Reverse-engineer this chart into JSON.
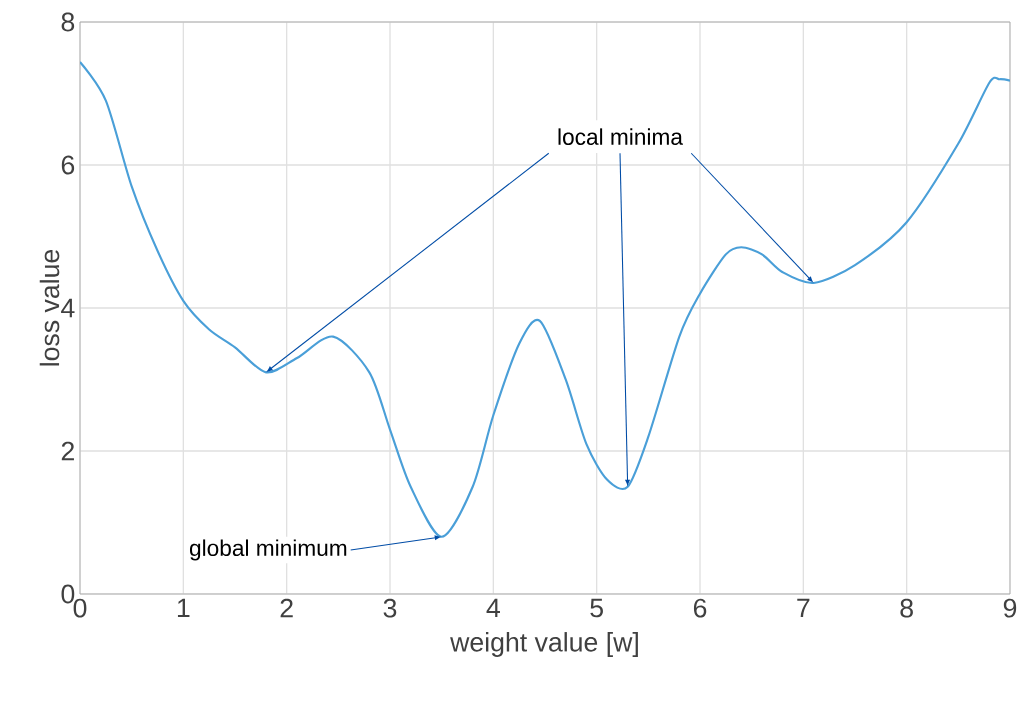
{
  "chart_data": {
    "type": "line",
    "xlabel": "weight value [w]",
    "ylabel": "loss value",
    "x": [
      0,
      0.25,
      0.5,
      0.75,
      1.0,
      1.25,
      1.5,
      1.8,
      2.1,
      2.45,
      2.8,
      3.0,
      3.2,
      3.5,
      3.8,
      4.0,
      4.25,
      4.45,
      4.7,
      4.9,
      5.1,
      5.3,
      5.5,
      5.8,
      6.0,
      6.25,
      6.4,
      6.6,
      6.8,
      7.1,
      7.5,
      8.0,
      8.5,
      8.8,
      8.9,
      9.0
    ],
    "series": [
      {
        "color": "#4a9fd8",
        "values": [
          7.44,
          6.9,
          5.7,
          4.8,
          4.1,
          3.7,
          3.45,
          3.1,
          3.3,
          3.6,
          3.1,
          2.3,
          1.5,
          0.8,
          1.5,
          2.5,
          3.5,
          3.82,
          3.0,
          2.1,
          1.6,
          1.5,
          2.2,
          3.6,
          4.2,
          4.75,
          4.85,
          4.75,
          4.5,
          4.35,
          4.6,
          5.2,
          6.3,
          7.15,
          7.2,
          7.18
        ]
      }
    ],
    "xlim": [
      0,
      9
    ],
    "ylim": [
      0,
      8
    ],
    "xticks": [
      0,
      1,
      2,
      3,
      4,
      5,
      6,
      7,
      8,
      9
    ],
    "yticks": [
      0,
      2,
      4,
      6,
      8
    ],
    "grid": true,
    "annotations": [
      {
        "text": "local minima",
        "x": 5.3,
        "y": 1.5
      },
      {
        "text": "global minimum",
        "x": 3.5,
        "y": 0.8
      }
    ]
  }
}
